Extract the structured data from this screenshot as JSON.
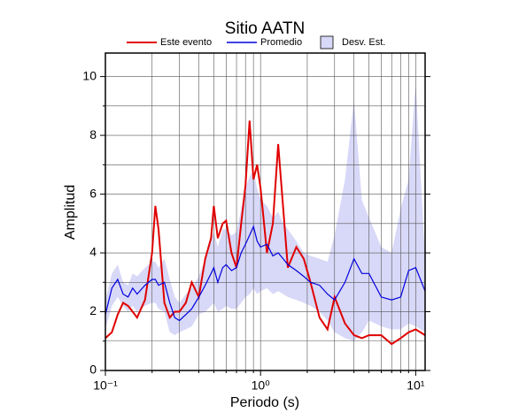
{
  "chart_data": {
    "type": "line",
    "title": "Sitio AATN",
    "x_label": "Periodo (s)",
    "y_label": "Amplitud",
    "log_x": true,
    "grid": true,
    "xlim": [
      0.1,
      11.5
    ],
    "xticks": [
      {
        "value": 0.1,
        "label": "10⁻¹"
      },
      {
        "value": 1,
        "label": "10⁰"
      },
      {
        "value": 10,
        "label": "10¹"
      }
    ],
    "xgrid": [
      0.2,
      0.3,
      0.4,
      0.5,
      0.6,
      0.7,
      0.8,
      0.9,
      2,
      3,
      4,
      5,
      6,
      7,
      8,
      9
    ],
    "ylim": [
      0,
      10.8
    ],
    "yticks": [
      0,
      2,
      4,
      6,
      8,
      10
    ],
    "yminor": [
      1,
      3,
      5,
      7,
      9
    ],
    "x": [
      0.1,
      0.11,
      0.12,
      0.13,
      0.14,
      0.15,
      0.16,
      0.18,
      0.2,
      0.21,
      0.22,
      0.24,
      0.26,
      0.28,
      0.3,
      0.33,
      0.36,
      0.4,
      0.44,
      0.48,
      0.5,
      0.53,
      0.57,
      0.6,
      0.65,
      0.7,
      0.75,
      0.8,
      0.85,
      0.9,
      0.95,
      1.0,
      1.1,
      1.2,
      1.3,
      1.4,
      1.5,
      1.7,
      1.9,
      2.1,
      2.4,
      2.7,
      3.0,
      3.5,
      4.0,
      4.5,
      5,
      6,
      7,
      8,
      9,
      10,
      11.5
    ],
    "series": [
      {
        "name": "Este evento",
        "color": "#e00000",
        "values": [
          1.1,
          1.3,
          1.9,
          2.3,
          2.2,
          2.0,
          1.8,
          2.4,
          4.0,
          5.6,
          4.8,
          2.3,
          1.8,
          2.0,
          2.0,
          2.3,
          3.0,
          2.5,
          3.8,
          4.5,
          5.6,
          4.5,
          5.0,
          5.1,
          4.0,
          3.5,
          5.0,
          6.3,
          8.5,
          6.5,
          7.0,
          6.2,
          4.0,
          5.0,
          7.7,
          5.5,
          3.5,
          4.2,
          3.8,
          3.0,
          1.8,
          1.4,
          2.5,
          1.6,
          1.2,
          1.1,
          1.2,
          1.2,
          0.9,
          1.1,
          1.3,
          1.4,
          1.2
        ]
      },
      {
        "name": "Promedio",
        "color": "#0000dd",
        "values": [
          1.9,
          2.8,
          3.1,
          2.6,
          2.5,
          2.8,
          2.6,
          2.9,
          3.1,
          3.1,
          2.9,
          3.0,
          2.3,
          1.8,
          1.7,
          1.9,
          2.1,
          2.5,
          2.9,
          3.3,
          3.5,
          3.0,
          3.5,
          3.6,
          3.4,
          3.5,
          4.0,
          4.3,
          4.6,
          4.9,
          4.4,
          4.2,
          4.3,
          3.9,
          4.0,
          3.8,
          3.6,
          3.4,
          3.2,
          3.0,
          2.9,
          2.6,
          2.4,
          3.0,
          3.8,
          3.3,
          3.3,
          2.5,
          2.4,
          2.5,
          3.4,
          3.5,
          2.7
        ]
      },
      {
        "name": "Desv. Est.",
        "color": "#d8d8f8",
        "lower": [
          1.4,
          2.2,
          2.5,
          2.2,
          2.0,
          2.2,
          2.0,
          2.2,
          2.3,
          2.3,
          2.1,
          2.0,
          1.3,
          1.2,
          1.3,
          1.4,
          1.5,
          1.9,
          2.0,
          2.2,
          2.3,
          2.0,
          2.1,
          2.2,
          2.1,
          2.1,
          2.3,
          2.5,
          2.6,
          2.8,
          2.6,
          2.7,
          2.8,
          2.6,
          2.7,
          2.6,
          2.5,
          2.4,
          2.3,
          2.2,
          2.0,
          1.7,
          1.3,
          1.1,
          1.0,
          1.3,
          1.7,
          1.5,
          1.4,
          1.4,
          1.6,
          1.5,
          1.3
        ],
        "upper": [
          2.4,
          3.3,
          3.6,
          3.0,
          2.9,
          3.3,
          3.2,
          3.5,
          3.7,
          3.7,
          3.5,
          3.8,
          3.1,
          2.5,
          2.3,
          2.6,
          2.8,
          3.2,
          3.8,
          4.5,
          4.7,
          4.2,
          4.8,
          4.8,
          4.6,
          4.7,
          5.5,
          6.2,
          6.6,
          6.8,
          6.2,
          5.8,
          5.6,
          5.2,
          5.4,
          5.0,
          4.8,
          4.4,
          4.0,
          3.9,
          3.8,
          3.7,
          4.6,
          6.5,
          9.2,
          5.8,
          5.2,
          4.2,
          4.0,
          5.5,
          6.5,
          9.8,
          3.8
        ]
      }
    ]
  }
}
